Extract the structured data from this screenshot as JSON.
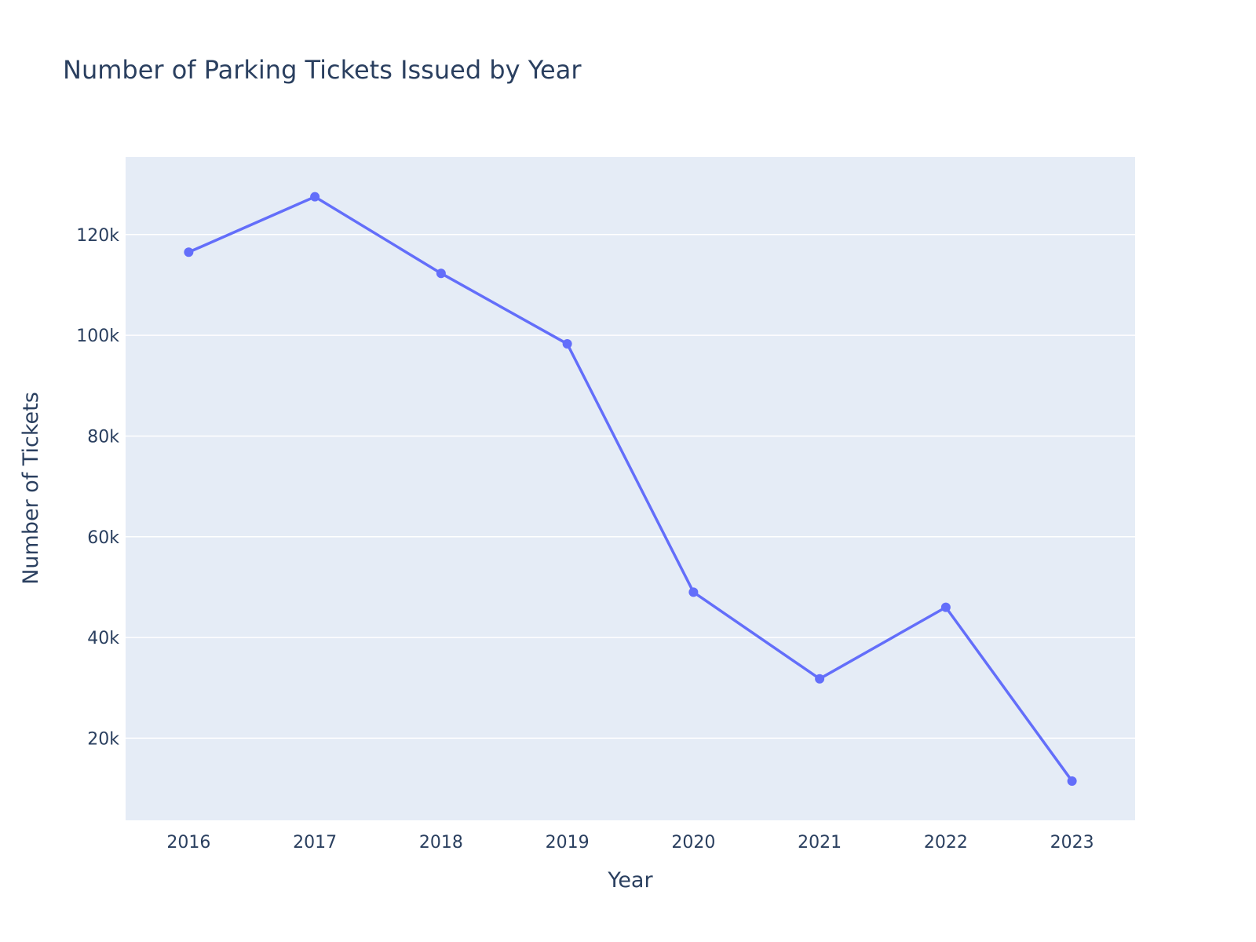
{
  "chart_data": {
    "type": "line",
    "title": "Number of Parking Tickets Issued by Year",
    "xlabel": "Year",
    "ylabel": "Number of Tickets",
    "x": [
      2016,
      2017,
      2018,
      2019,
      2020,
      2021,
      2022,
      2023
    ],
    "xtick_labels": [
      "2016",
      "2017",
      "2018",
      "2019",
      "2020",
      "2021",
      "2022",
      "2023"
    ],
    "series": [
      {
        "values": [
          116500,
          127500,
          112300,
          98300,
          49000,
          31800,
          46000,
          11500
        ]
      }
    ],
    "yticks": [
      20000,
      40000,
      60000,
      80000,
      100000,
      120000
    ],
    "ytick_labels": [
      "20k",
      "40k",
      "60k",
      "80k",
      "100k",
      "120k"
    ],
    "ylim": [
      3700,
      135400
    ],
    "grid": true,
    "legend": "none",
    "colors": {
      "line": "#636efa",
      "plot_background": "#e5ecf6",
      "grid": "#ffffff",
      "text": "#2a3f5f"
    }
  }
}
